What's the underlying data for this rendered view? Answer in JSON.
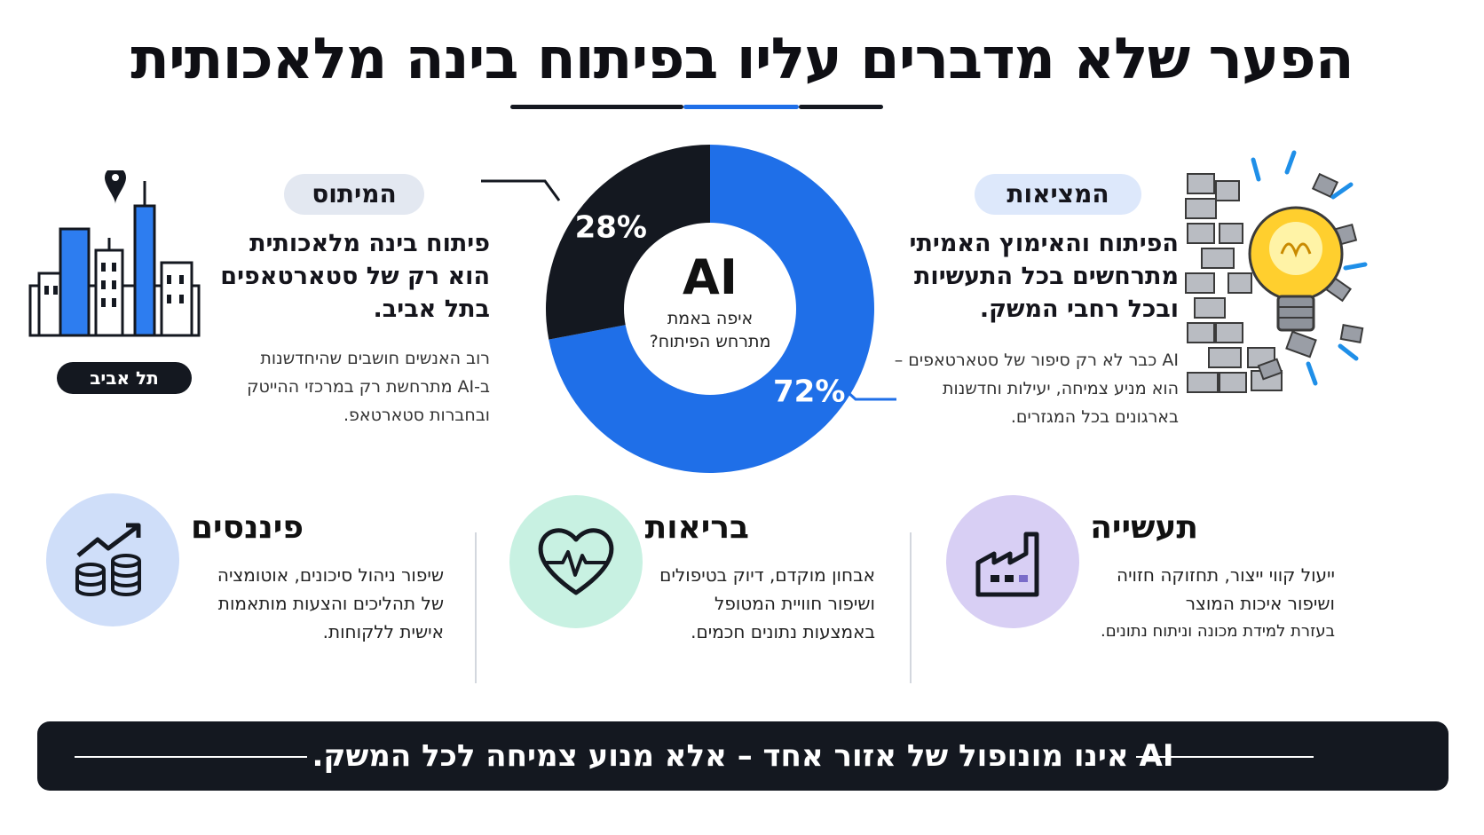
{
  "title": "הפער שלא מדברים עליו בפיתוח בינה מלאכותית",
  "colors": {
    "accent_blue": "#1f6fe8",
    "dark": "#141820",
    "manufacturing_circle": "#d8cff4",
    "health_circle": "#c8f1e2",
    "finance_circle": "#cfdef9"
  },
  "reality": {
    "pill": "המציאות",
    "headline": [
      "הפיתוח והאימוץ האמיתי",
      "מתרחשים בכל התעשיות",
      "ובכל רחבי המשק."
    ],
    "body": [
      "AI כבר לא רק סיפור של סטארטאפים –",
      "הוא מניע צמיחה, יעילות וחדשנות",
      "בארגונים בכל המגזרים."
    ],
    "icon": "lightbulb-breaking-wall-icon"
  },
  "myth": {
    "pill": "המיתוס",
    "headline": [
      "פיתוח בינה מלאכותית",
      "הוא רק של סטארטאפים",
      "בתל אביב."
    ],
    "body": [
      "רוב האנשים חושבים שהיחדשנות",
      "ב-AI מתרחשת רק במרכזי ההייטק",
      "ובחברות סטארטאפ."
    ],
    "icon": "city-skyline-icon",
    "city_label": "תל אביב"
  },
  "chart_data": {
    "type": "pie",
    "center_title": "AI",
    "center_subtitle": [
      "איפה באמת",
      "מתרחש הפיתוח?"
    ],
    "slices": [
      {
        "label": "72%",
        "value": 72,
        "color": "#1f6fe8"
      },
      {
        "label": "28%",
        "value": 28,
        "color": "#141820"
      }
    ]
  },
  "sectors": [
    {
      "title": "תעשייה",
      "lines": [
        "ייעול קווי ייצור, תחזוקה חזויה",
        "ושיפור איכות המוצר",
        "בעזרת למידת מכונה וניתוח נתונים."
      ],
      "icon": "factory-icon"
    },
    {
      "title": "בריאות",
      "lines": [
        "אבחון מוקדם, דיוק בטיפולים",
        "ושיפור חוויית המטופל",
        "באמצעות נתונים חכמים."
      ],
      "icon": "heartbeat-icon"
    },
    {
      "title": "פיננסים",
      "lines": [
        "שיפור ניהול סיכונים, אוטומציה",
        "של תהליכים והצעות מותאמות",
        "אישית ללקוחות."
      ],
      "icon": "coins-growth-icon"
    }
  ],
  "banner": "AI אינו מונופול של אזור אחד – אלא מנוע צמיחה לכל המשק."
}
